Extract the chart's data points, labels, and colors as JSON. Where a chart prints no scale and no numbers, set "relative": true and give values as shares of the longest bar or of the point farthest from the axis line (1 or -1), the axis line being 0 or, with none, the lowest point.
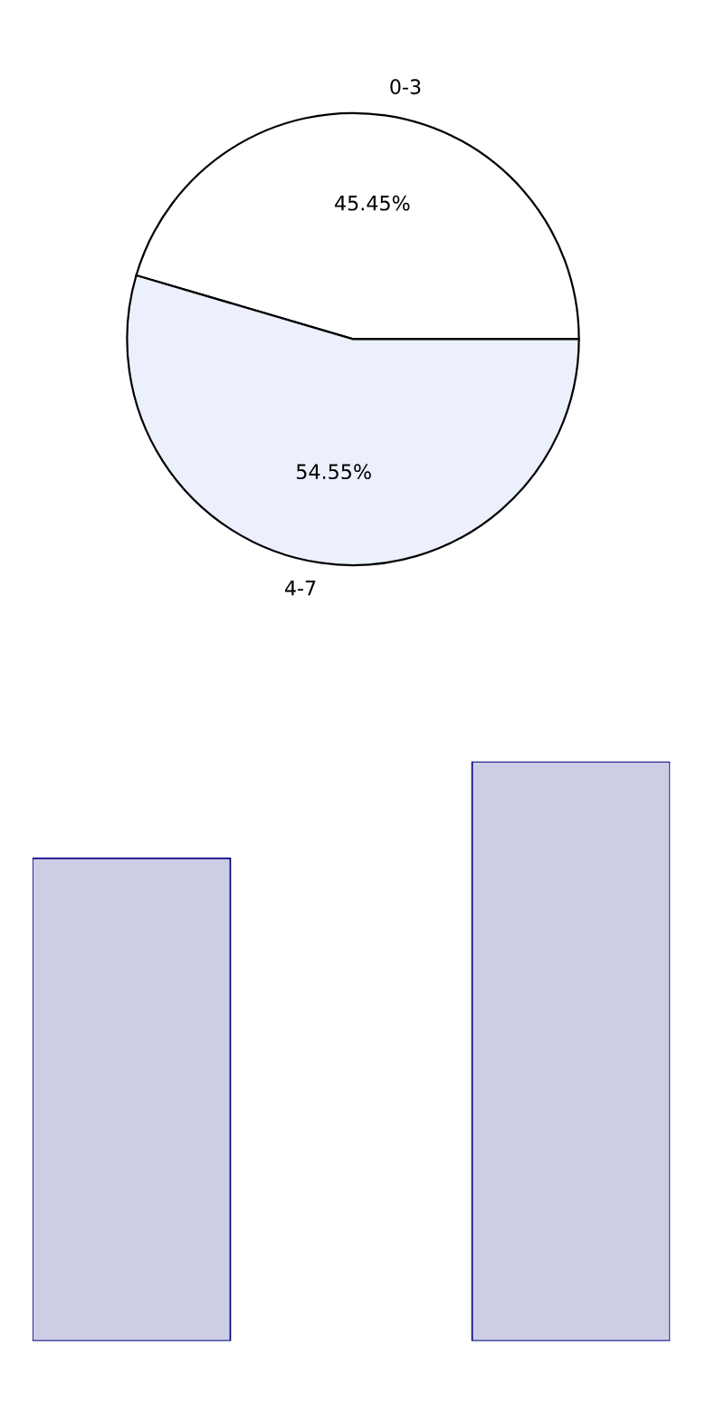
{
  "chart_data": [
    {
      "type": "pie",
      "categories": [
        "0-3",
        "4-7"
      ],
      "values": [
        45.45,
        54.55
      ],
      "colors": [
        "#ffffff",
        "#ebf0fc"
      ],
      "value_labels": [
        "45.45%",
        "54.55%"
      ]
    },
    {
      "type": "bar",
      "categories": [
        null,
        null
      ],
      "values": [
        0.833,
        1
      ],
      "color": "#cdcde6",
      "relative": true
    }
  ]
}
